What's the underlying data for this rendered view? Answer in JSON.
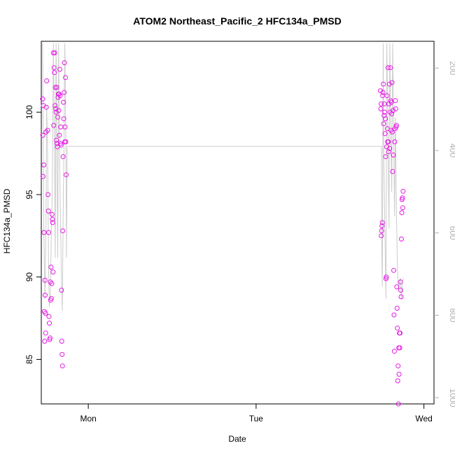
{
  "chart_data": {
    "type": "scatter",
    "title": "ATOM2 Northeast_Pacific_2 HFC134a_PMSD",
    "xlabel": "Date",
    "ylabel": "HFC134a_PMSD",
    "x_tick_labels": [
      "Mon",
      "Tue",
      "Wed"
    ],
    "x_tick_values": [
      1.0,
      2.0,
      3.0
    ],
    "xlim": [
      0.72,
      3.06
    ],
    "ylim": [
      82.3,
      104.3
    ],
    "y_ticks": [
      85,
      90,
      95,
      100
    ],
    "y2_ticks": [
      200,
      400,
      600,
      800,
      1000
    ],
    "y2lim": [
      1015,
      135
    ],
    "grid": false,
    "colors": {
      "points": "#e619e6",
      "altitude_line": "#cccccc",
      "frame": "#000000",
      "right_axis": "#b0b0b0"
    },
    "series": [
      {
        "type": "scatter",
        "points": [
          [
            0.728,
            100.8
          ],
          [
            0.729,
            98.6
          ],
          [
            0.73,
            96.1
          ],
          [
            0.732,
            100.4
          ],
          [
            0.735,
            96.8
          ],
          [
            0.736,
            92.7
          ],
          [
            0.738,
            87.9
          ],
          [
            0.74,
            86.1
          ],
          [
            0.742,
            89.8
          ],
          [
            0.743,
            88.9
          ],
          [
            0.745,
            87.8
          ],
          [
            0.746,
            86.6
          ],
          [
            0.748,
            98.8
          ],
          [
            0.75,
            100.3
          ],
          [
            0.752,
            101.9
          ],
          [
            0.758,
            98.9
          ],
          [
            0.76,
            95.0
          ],
          [
            0.762,
            94.0
          ],
          [
            0.764,
            92.7
          ],
          [
            0.766,
            87.6
          ],
          [
            0.768,
            87.2
          ],
          [
            0.77,
            86.2
          ],
          [
            0.772,
            86.3
          ],
          [
            0.774,
            89.7
          ],
          [
            0.776,
            88.6
          ],
          [
            0.778,
            90.6
          ],
          [
            0.78,
            88.7
          ],
          [
            0.782,
            89.6
          ],
          [
            0.784,
            93.8
          ],
          [
            0.786,
            93.5
          ],
          [
            0.788,
            93.3
          ],
          [
            0.79,
            90.3
          ],
          [
            0.792,
            103.6
          ],
          [
            0.794,
            99.2
          ],
          [
            0.796,
            102.7
          ],
          [
            0.798,
            102.4
          ],
          [
            0.8,
            103.6
          ],
          [
            0.802,
            100.4
          ],
          [
            0.804,
            101.5
          ],
          [
            0.806,
            100.2
          ],
          [
            0.808,
            100.0
          ],
          [
            0.81,
            98.3
          ],
          [
            0.812,
            101.5
          ],
          [
            0.814,
            98.1
          ],
          [
            0.816,
            97.9
          ],
          [
            0.818,
            99.7
          ],
          [
            0.82,
            100.9
          ],
          [
            0.822,
            101.1
          ],
          [
            0.824,
            100.1
          ],
          [
            0.826,
            101.1
          ],
          [
            0.828,
            98.6
          ],
          [
            0.83,
            102.6
          ],
          [
            0.832,
            101.0
          ],
          [
            0.834,
            98.1
          ],
          [
            0.836,
            99.1
          ],
          [
            0.838,
            98.0
          ],
          [
            0.84,
            89.2
          ],
          [
            0.842,
            86.1
          ],
          [
            0.844,
            85.3
          ],
          [
            0.846,
            84.6
          ],
          [
            0.848,
            92.8
          ],
          [
            0.85,
            97.3
          ],
          [
            0.852,
            100.6
          ],
          [
            0.854,
            99.6
          ],
          [
            0.856,
            101.2
          ],
          [
            0.858,
            103.0
          ],
          [
            0.86,
            98.2
          ],
          [
            0.862,
            99.1
          ],
          [
            0.864,
            102.1
          ],
          [
            0.866,
            98.2
          ],
          [
            0.868,
            96.2
          ],
          [
            2.741,
            101.3
          ],
          [
            2.743,
            100.2
          ],
          [
            2.745,
            100.5
          ],
          [
            2.746,
            92.5
          ],
          [
            2.748,
            92.8
          ],
          [
            2.75,
            93.1
          ],
          [
            2.752,
            93.3
          ],
          [
            2.754,
            101.0
          ],
          [
            2.756,
            101.2
          ],
          [
            2.758,
            101.7
          ],
          [
            2.76,
            99.3
          ],
          [
            2.762,
            99.8
          ],
          [
            2.764,
            100.5
          ],
          [
            2.766,
            100.0
          ],
          [
            2.768,
            98.7
          ],
          [
            2.77,
            99.6
          ],
          [
            2.772,
            97.3
          ],
          [
            2.774,
            89.9
          ],
          [
            2.776,
            90.0
          ],
          [
            2.778,
            97.9
          ],
          [
            2.78,
            101.0
          ],
          [
            2.782,
            99.0
          ],
          [
            2.784,
            98.2
          ],
          [
            2.786,
            102.7
          ],
          [
            2.788,
            98.2
          ],
          [
            2.79,
            97.6
          ],
          [
            2.792,
            100.5
          ],
          [
            2.794,
            101.7
          ],
          [
            2.796,
            97.8
          ],
          [
            2.798,
            100.0
          ],
          [
            2.8,
            102.7
          ],
          [
            2.802,
            100.7
          ],
          [
            2.804,
            98.9
          ],
          [
            2.806,
            100.6
          ],
          [
            2.808,
            99.9
          ],
          [
            2.81,
            101.8
          ],
          [
            2.812,
            98.8
          ],
          [
            2.814,
            96.4
          ],
          [
            2.816,
            100.1
          ],
          [
            2.818,
            97.4
          ],
          [
            2.82,
            90.4
          ],
          [
            2.822,
            87.7
          ],
          [
            2.824,
            85.5
          ],
          [
            2.826,
            98.2
          ],
          [
            2.828,
            99.0
          ],
          [
            2.83,
            100.7
          ],
          [
            2.832,
            100.2
          ],
          [
            2.834,
            99.1
          ],
          [
            2.836,
            99.2
          ],
          [
            2.838,
            89.4
          ],
          [
            2.84,
            88.1
          ],
          [
            2.842,
            86.9
          ],
          [
            2.844,
            83.7
          ],
          [
            2.846,
            84.6
          ],
          [
            2.848,
            82.3
          ],
          [
            2.85,
            85.7
          ],
          [
            2.852,
            84.1
          ],
          [
            2.854,
            86.6
          ],
          [
            2.856,
            85.7
          ],
          [
            2.858,
            86.6
          ],
          [
            2.86,
            89.7
          ],
          [
            2.862,
            89.2
          ],
          [
            2.864,
            88.8
          ],
          [
            2.866,
            92.3
          ],
          [
            2.868,
            93.9
          ],
          [
            2.87,
            94.7
          ],
          [
            2.872,
            94.8
          ],
          [
            2.874,
            94.2
          ],
          [
            2.876,
            95.2
          ]
        ]
      },
      {
        "type": "line",
        "axis": "right",
        "points": [
          [
            0.728,
            140
          ],
          [
            0.735,
            600
          ],
          [
            0.742,
            760
          ],
          [
            0.748,
            580
          ],
          [
            0.752,
            290
          ],
          [
            0.758,
            420
          ],
          [
            0.764,
            700
          ],
          [
            0.768,
            780
          ],
          [
            0.774,
            740
          ],
          [
            0.78,
            600
          ],
          [
            0.786,
            480
          ],
          [
            0.792,
            140
          ],
          [
            0.798,
            370
          ],
          [
            0.803,
            660
          ],
          [
            0.808,
            140
          ],
          [
            0.813,
            420
          ],
          [
            0.818,
            660
          ],
          [
            0.823,
            140
          ],
          [
            0.828,
            380
          ],
          [
            0.834,
            560
          ],
          [
            0.839,
            680
          ],
          [
            0.845,
            790
          ],
          [
            0.85,
            560
          ],
          [
            0.855,
            380
          ],
          [
            0.86,
            140
          ],
          [
            0.866,
            360
          ],
          [
            0.87,
            660
          ],
          [
            0.874,
            390
          ],
          [
            0.88,
            390
          ],
          [
            2.747,
            390
          ],
          [
            2.749,
            640
          ],
          [
            2.752,
            730
          ],
          [
            2.757,
            140
          ],
          [
            2.761,
            420
          ],
          [
            2.767,
            590
          ],
          [
            2.774,
            760
          ],
          [
            2.779,
            140
          ],
          [
            2.785,
            340
          ],
          [
            2.792,
            590
          ],
          [
            2.797,
            140
          ],
          [
            2.803,
            360
          ],
          [
            2.808,
            500
          ],
          [
            2.814,
            140
          ],
          [
            2.82,
            380
          ],
          [
            2.825,
            560
          ],
          [
            2.83,
            320
          ],
          [
            2.836,
            540
          ],
          [
            2.842,
            680
          ],
          [
            2.848,
            740
          ],
          [
            2.854,
            720
          ],
          [
            2.86,
            710
          ],
          [
            2.866,
            760
          ],
          [
            2.872,
            720
          ],
          [
            2.878,
            710
          ]
        ]
      }
    ]
  }
}
